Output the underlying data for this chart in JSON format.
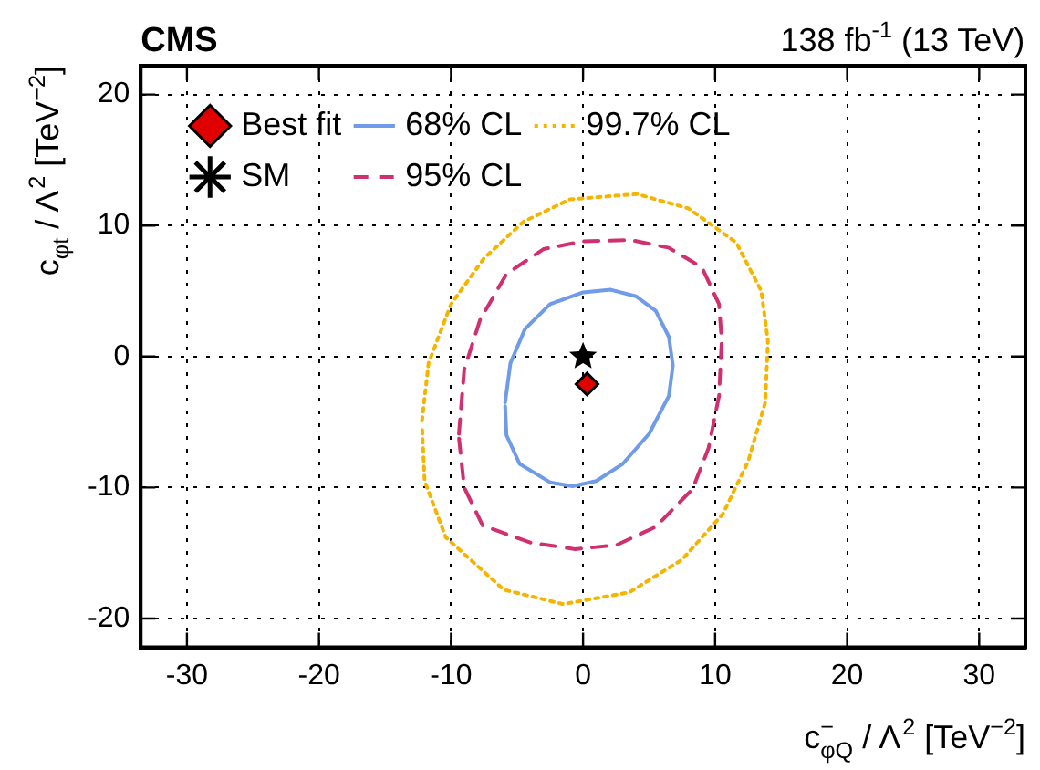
{
  "chart_data": {
    "type": "line",
    "title": "CMS",
    "subtitle": "138 fb$^{-1}$ (13 TeV)",
    "xlabel": "c$^{−}$$_{φQ}$ / Λ$^{2}$ [TeV$^{−2}$]",
    "ylabel": "c$_{φt}$ / Λ$^{2}$ [TeV$^{−2}$]",
    "xlim": [
      -33.5,
      33.5
    ],
    "ylim": [
      -22.2,
      22.2
    ],
    "xticks": [
      -30,
      -20,
      -10,
      0,
      10,
      20,
      30
    ],
    "yticks": [
      -20,
      -10,
      0,
      10,
      20
    ],
    "grid": true,
    "legend": "top left",
    "series": [
      {
        "name": "Best fit",
        "type": "scatter",
        "marker": "diamond",
        "color": "#e00000",
        "x": [
          0.3
        ],
        "values": [
          -2.1
        ]
      },
      {
        "name": "SM",
        "type": "scatter",
        "marker": "star",
        "color": "#000000",
        "x": [
          0
        ],
        "values": [
          0
        ]
      },
      {
        "name": "68% CL",
        "line_style": "solid",
        "color": "#6f9be8",
        "x": [
          -5.9,
          -5.5,
          -4.4,
          -2.5,
          0,
          2.1,
          4.0,
          5.5,
          6.5,
          6.8,
          6.5,
          5.0,
          3.0,
          1.0,
          -0.8,
          -2.5,
          -4.8,
          -5.8,
          -5.9
        ],
        "values": [
          -3.5,
          -0.5,
          2.1,
          4.0,
          4.9,
          5.1,
          4.6,
          3.5,
          1.5,
          -0.7,
          -3.0,
          -5.9,
          -8.2,
          -9.5,
          -9.9,
          -9.6,
          -8.2,
          -6.0,
          -3.8
        ]
      },
      {
        "name": "95% CL",
        "line_style": "dashed",
        "color": "#d0306f",
        "x": [
          -9.4,
          -9.0,
          -7.8,
          -5.8,
          -3.0,
          0,
          3.6,
          6.5,
          9.0,
          10.3,
          10.5,
          10.3,
          9.5,
          8.3,
          5.5,
          2.5,
          -0.6,
          -4.0,
          -7.6,
          -9.0,
          -9.4
        ],
        "values": [
          -5.9,
          -1.0,
          2.8,
          6.3,
          8.2,
          8.8,
          8.9,
          8.3,
          6.8,
          4.0,
          1.2,
          -3.0,
          -7.0,
          -10.1,
          -13.0,
          -14.4,
          -14.7,
          -14.2,
          -12.9,
          -10.0,
          -6.2
        ]
      },
      {
        "name": "99.7% CL",
        "line_style": "dotted",
        "color": "#f5b400",
        "x": [
          -12.2,
          -11.7,
          -10.0,
          -7.5,
          -4.5,
          -1.0,
          4.1,
          8.0,
          11.6,
          13.5,
          14.0,
          13.8,
          12.5,
          10.6,
          7.5,
          3.5,
          -1.5,
          -6.0,
          -10.4,
          -12.0,
          -12.2
        ],
        "values": [
          -4.9,
          -0.5,
          4.0,
          7.5,
          10.3,
          12.0,
          12.4,
          11.3,
          8.7,
          5.0,
          1.2,
          -3.5,
          -8.0,
          -12.0,
          -15.5,
          -18.0,
          -18.9,
          -17.8,
          -13.8,
          -9.5,
          -5.2
        ]
      }
    ]
  }
}
